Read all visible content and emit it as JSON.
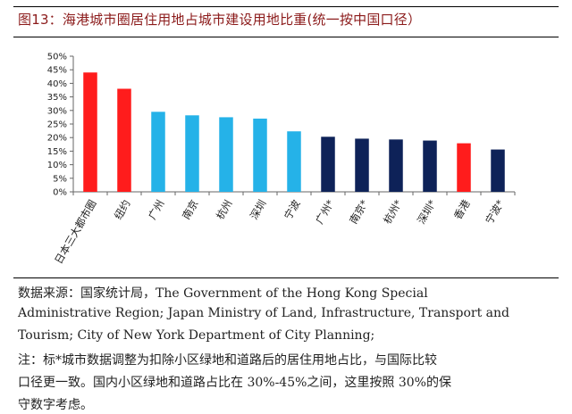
{
  "title": "图13：海港城市圈居住用地占城市建设用地比重(统一按中国口径）",
  "colors": {
    "red": "#ff1c1c",
    "blue": "#25b2e8",
    "navy": "#0e2258",
    "title": "#8b1a1a"
  },
  "chart_data": {
    "type": "bar",
    "categories": [
      "日本三大都市圈",
      "纽约",
      "广州",
      "南京",
      "杭州",
      "深圳",
      "宁波",
      "广州*",
      "南京*",
      "杭州*",
      "深圳*",
      "香港",
      "宁波*"
    ],
    "values": [
      44,
      38,
      29.5,
      28.2,
      27.5,
      27,
      22.3,
      20.3,
      19.6,
      19.3,
      18.9,
      17.9,
      15.6
    ],
    "bar_colors": [
      "red",
      "red",
      "blue",
      "blue",
      "blue",
      "blue",
      "blue",
      "navy",
      "navy",
      "navy",
      "navy",
      "red",
      "navy"
    ],
    "y_ticks": [
      "0%",
      "5%",
      "10%",
      "15%",
      "20%",
      "25%",
      "30%",
      "35%",
      "40%",
      "45%",
      "50%"
    ],
    "ylim": [
      0,
      50
    ],
    "xlabel": "",
    "ylabel": ""
  },
  "notes": {
    "line1": "数据来源：国家统计局，The Government of the Hong Kong Special",
    "line2": "Administrative Region; Japan Ministry of Land, Infrastructure, Transport and",
    "line3": "Tourism;    City of New York Department of City Planning;",
    "line4": "注：标*城市数据调整为扣除小区绿地和道路后的居住用地占比，与国际比较",
    "line5": "口径更一致。国内小区绿地和道路占比在 30%-45%之间，这里按照 30%的保",
    "line6": "守数字考虑。"
  }
}
